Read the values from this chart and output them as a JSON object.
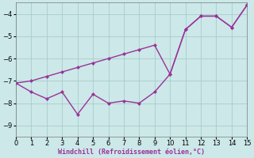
{
  "xlabel": "Windchill (Refroidissement éolien,°C)",
  "background_color": "#cce8e8",
  "line_color": "#993399",
  "line1_x": [
    0,
    1,
    2,
    3,
    4,
    5,
    6,
    7,
    8,
    9,
    10,
    11,
    12,
    13,
    14,
    15
  ],
  "line1_y": [
    -7.1,
    -7.0,
    -6.8,
    -6.6,
    -6.4,
    -6.2,
    -6.0,
    -5.8,
    -5.6,
    -5.4,
    -6.7,
    -4.7,
    -4.1,
    -4.1,
    -4.6,
    -3.6
  ],
  "line2_x": [
    0,
    1,
    2,
    3,
    4,
    5,
    6,
    7,
    8,
    9,
    10,
    11,
    12,
    13,
    14,
    15
  ],
  "line2_y": [
    -7.1,
    -7.5,
    -7.8,
    -7.5,
    -8.5,
    -7.6,
    -8.0,
    -7.9,
    -8.0,
    -7.5,
    -6.7,
    -4.7,
    -4.1,
    -4.1,
    -4.6,
    -3.6
  ],
  "xlim": [
    0,
    15
  ],
  "ylim": [
    -9.5,
    -3.5
  ],
  "yticks": [
    -9,
    -8,
    -7,
    -6,
    -5,
    -4
  ],
  "xticks": [
    0,
    1,
    2,
    3,
    4,
    5,
    6,
    7,
    8,
    9,
    10,
    11,
    12,
    13,
    14,
    15
  ],
  "grid_color": "#aacccc",
  "marker": "D",
  "markersize": 2.5,
  "linewidth": 1.0,
  "tick_labelsize": 6,
  "xlabel_fontsize": 6,
  "xlabel_color": "#993399"
}
